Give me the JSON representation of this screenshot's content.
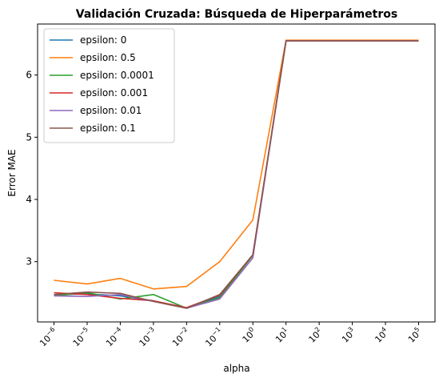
{
  "chart_data": {
    "type": "line",
    "title": "Validación Cruzada: Búsqueda de Hiperparámetros",
    "xlabel": "alpha",
    "ylabel": "Error MAE",
    "x_scale": "log",
    "x": [
      1e-06,
      1e-05,
      0.0001,
      0.001,
      0.01,
      0.1,
      1,
      10,
      100,
      1000,
      10000,
      100000
    ],
    "x_tick_exponents": [
      "−6",
      "−5",
      "−4",
      "−3",
      "−2",
      "−1",
      "0",
      "1",
      "2",
      "3",
      "4",
      "5"
    ],
    "x_tick_base": "10",
    "y_ticks": [
      3,
      4,
      5,
      6
    ],
    "ylim": [
      2.03,
      6.82
    ],
    "grid": false,
    "legend_position": "top-left",
    "series": [
      {
        "name": "epsilon: 0",
        "color": "#1f77b4",
        "values": [
          2.47,
          2.48,
          2.45,
          2.37,
          2.25,
          2.44,
          3.1,
          6.55,
          6.55,
          6.55,
          6.55,
          6.55
        ]
      },
      {
        "name": "epsilon: 0.5",
        "color": "#ff7f0e",
        "values": [
          2.7,
          2.64,
          2.73,
          2.56,
          2.6,
          3.0,
          3.67,
          6.56,
          6.56,
          6.56,
          6.56,
          6.56
        ]
      },
      {
        "name": "epsilon: 0.0001",
        "color": "#2ca02c",
        "values": [
          2.45,
          2.5,
          2.4,
          2.47,
          2.25,
          2.42,
          3.1,
          6.55,
          6.55,
          6.55,
          6.55,
          6.55
        ]
      },
      {
        "name": "epsilon: 0.001",
        "color": "#d62728",
        "values": [
          2.5,
          2.47,
          2.41,
          2.37,
          2.26,
          2.46,
          3.11,
          6.55,
          6.55,
          6.55,
          6.55,
          6.55
        ]
      },
      {
        "name": "epsilon: 0.01",
        "color": "#9467bd",
        "values": [
          2.45,
          2.44,
          2.47,
          2.36,
          2.25,
          2.4,
          3.06,
          6.55,
          6.55,
          6.55,
          6.55,
          6.55
        ]
      },
      {
        "name": "epsilon: 0.1",
        "color": "#8c564b",
        "values": [
          2.47,
          2.51,
          2.49,
          2.36,
          2.25,
          2.47,
          3.11,
          6.55,
          6.55,
          6.55,
          6.55,
          6.55
        ]
      }
    ]
  }
}
